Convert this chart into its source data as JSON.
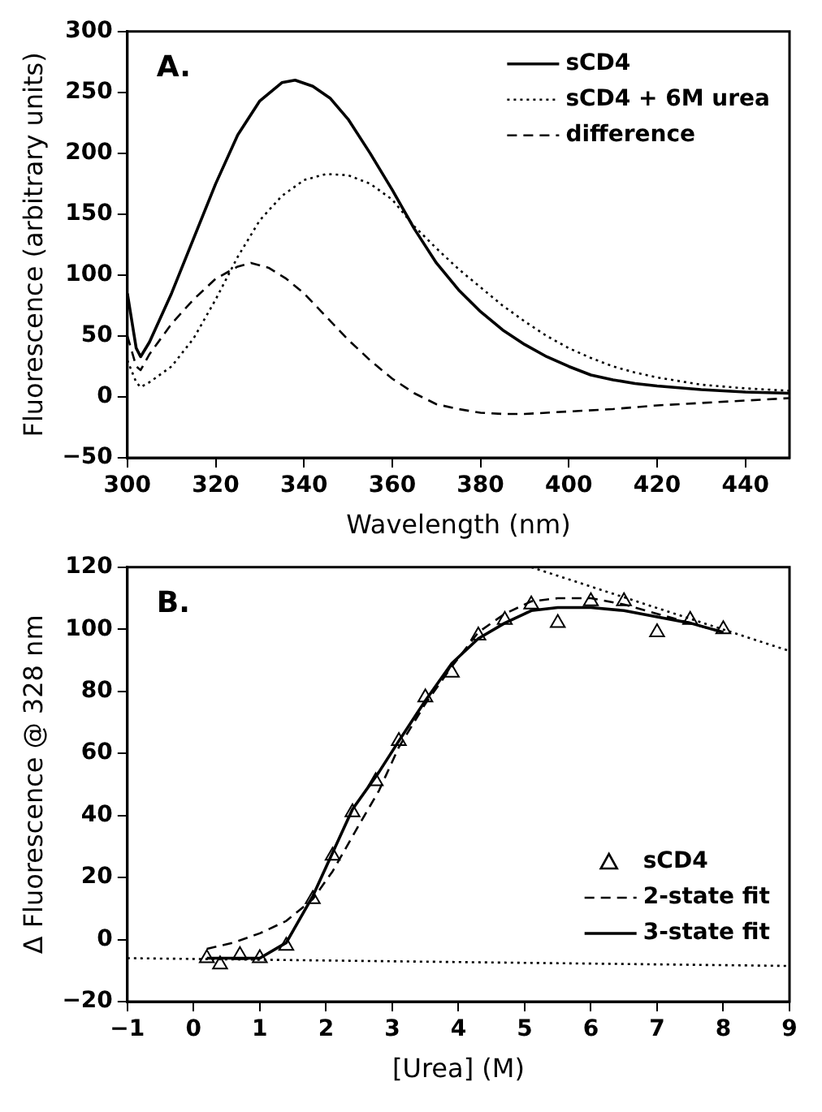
{
  "chart_data": [
    {
      "type": "line",
      "title": null,
      "annotations": [
        "A."
      ],
      "xlabel": "Wavelength (nm)",
      "ylabel": "Fluorescence (arbitrary units)",
      "xlim": [
        300,
        450
      ],
      "xticks": [
        300,
        320,
        340,
        360,
        380,
        400,
        420,
        440
      ],
      "ylim": [
        -50,
        300
      ],
      "yticks": [
        -50,
        0,
        50,
        100,
        150,
        200,
        250,
        300
      ],
      "grid": false,
      "legend": "top right",
      "series": [
        {
          "name": "sCD4",
          "color": "#000000",
          "line_style": "solid",
          "x": [
            300,
            302,
            303,
            305,
            310,
            315,
            320,
            325,
            330,
            335,
            338,
            342,
            346,
            350,
            355,
            360,
            365,
            370,
            375,
            380,
            385,
            390,
            395,
            400,
            405,
            410,
            415,
            420,
            430,
            440,
            450
          ],
          "values": [
            85,
            40,
            33,
            45,
            85,
            130,
            175,
            215,
            243,
            258,
            260,
            255,
            245,
            228,
            200,
            170,
            138,
            110,
            88,
            70,
            55,
            43,
            33,
            25,
            18,
            14,
            11,
            9,
            6,
            4,
            3
          ]
        },
        {
          "name": "sCD4 + 6M urea",
          "color": "#000000",
          "line_style": "dotted",
          "x": [
            300,
            302,
            303,
            305,
            310,
            315,
            320,
            325,
            330,
            335,
            340,
            345,
            350,
            355,
            360,
            365,
            370,
            375,
            380,
            385,
            390,
            395,
            400,
            405,
            410,
            415,
            420,
            430,
            440,
            450
          ],
          "values": [
            30,
            12,
            8,
            12,
            25,
            48,
            80,
            115,
            145,
            165,
            178,
            183,
            182,
            175,
            162,
            140,
            122,
            105,
            90,
            75,
            62,
            50,
            40,
            32,
            25,
            20,
            16,
            10,
            7,
            5
          ]
        },
        {
          "name": "difference",
          "color": "#000000",
          "line_style": "dashed",
          "x": [
            300,
            302,
            303,
            305,
            310,
            315,
            320,
            325,
            328,
            332,
            336,
            340,
            345,
            350,
            355,
            360,
            365,
            370,
            375,
            380,
            385,
            390,
            400,
            410,
            420,
            430,
            440,
            450
          ],
          "values": [
            50,
            25,
            22,
            35,
            60,
            80,
            97,
            107,
            110,
            106,
            97,
            85,
            66,
            47,
            30,
            15,
            3,
            -6,
            -10,
            -13,
            -14,
            -14,
            -12,
            -10,
            -7,
            -5,
            -3,
            -1
          ]
        }
      ]
    },
    {
      "type": "line",
      "annotations": [
        "B."
      ],
      "xlabel": "[Urea] (M)",
      "ylabel": "Δ Fluorescence @ 328 nm",
      "xlim": [
        -1,
        9
      ],
      "xticks": [
        -1,
        0,
        1,
        2,
        3,
        4,
        5,
        6,
        7,
        8,
        9
      ],
      "ylim": [
        -20,
        120
      ],
      "yticks": [
        -20,
        0,
        20,
        40,
        60,
        80,
        100,
        120
      ],
      "grid": false,
      "legend": "bottom right",
      "series": [
        {
          "name": "sCD4",
          "type": "scatter",
          "marker": "triangle",
          "color": "#000000",
          "x": [
            0.2,
            0.4,
            0.7,
            1.0,
            1.4,
            1.8,
            2.1,
            2.4,
            2.75,
            3.1,
            3.5,
            3.9,
            4.3,
            4.7,
            5.1,
            5.5,
            6.0,
            6.5,
            7.0,
            7.5,
            8.0
          ],
          "values": [
            -6,
            -8,
            -5,
            -6,
            -2,
            13,
            27,
            41,
            51,
            64,
            78,
            86,
            98,
            103,
            108,
            102,
            109,
            109,
            99,
            103,
            100
          ]
        },
        {
          "name": "2-state fit",
          "color": "#000000",
          "line_style": "dashed",
          "x": [
            0.2,
            0.6,
            1.0,
            1.4,
            1.8,
            2.1,
            2.5,
            2.8,
            3.1,
            3.5,
            3.9,
            4.3,
            4.7,
            5.1,
            5.5,
            6.0,
            6.5,
            7.0,
            7.5,
            8.0
          ],
          "values": [
            -3,
            -1,
            2,
            6,
            13,
            22,
            37,
            48,
            62,
            76,
            88,
            99,
            105,
            109,
            110,
            110,
            108,
            105,
            102,
            99
          ]
        },
        {
          "name": "3-state fit",
          "color": "#000000",
          "line_style": "solid",
          "x": [
            0.2,
            1.0,
            1.4,
            1.8,
            2.1,
            2.4,
            2.8,
            3.1,
            3.5,
            3.9,
            4.3,
            4.7,
            5.1,
            5.5,
            6.0,
            6.5,
            7.0,
            7.5,
            8.0
          ],
          "values": [
            -6,
            -6,
            -1,
            14,
            28,
            42,
            54,
            64,
            77,
            89,
            97,
            102,
            106,
            107,
            107,
            106,
            104,
            102,
            99
          ]
        },
        {
          "color": "#000000",
          "line_style": "dotted",
          "x": [
            -1,
            9
          ],
          "values": [
            -6,
            -8.5
          ]
        },
        {
          "color": "#000000",
          "line_style": "dotted",
          "x": [
            5.1,
            9
          ],
          "values": [
            120,
            93
          ]
        }
      ]
    }
  ]
}
